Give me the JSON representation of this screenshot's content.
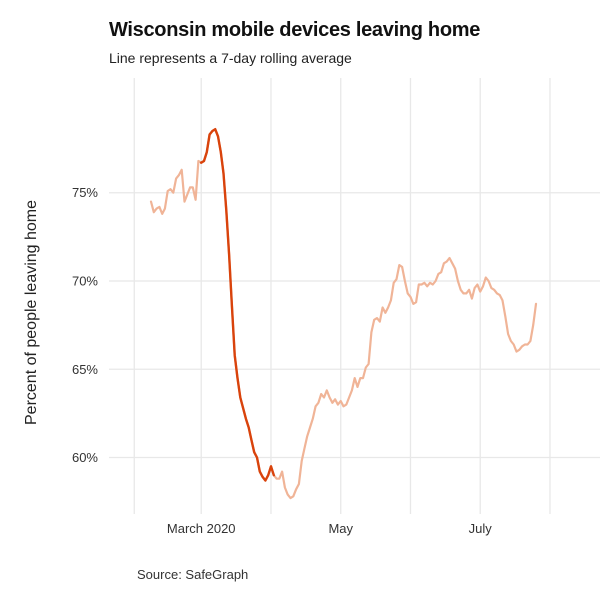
{
  "chart_data": {
    "type": "line",
    "title": "Wisconsin mobile devices leaving home",
    "subtitle": "Line represents a 7-day rolling average",
    "ylabel": "Percent of people leaving home",
    "source": "Source: SafeGraph",
    "ylim": [
      56.8,
      81.5
    ],
    "y_ticks": [
      60,
      65,
      70,
      75
    ],
    "y_tick_labels": [
      "60%",
      "65%",
      "70%",
      "75%"
    ],
    "x_ticks": [
      {
        "day": 18,
        "label": "March 2020"
      },
      {
        "day": 68,
        "label": "May"
      },
      {
        "day": 118,
        "label": "July"
      }
    ],
    "x_gridline_days": [
      -6,
      18,
      43,
      68,
      93,
      118,
      143
    ],
    "grid": true,
    "legend": "none",
    "colors": {
      "highlight": "#d9430c",
      "base": "#f0b497",
      "grid": "#e8e8e8"
    },
    "highlight_range": [
      18,
      44
    ],
    "series": [
      {
        "points": [
          [
            0,
            74.5
          ],
          [
            1,
            73.9
          ],
          [
            2,
            74.1
          ],
          [
            3,
            74.2
          ],
          [
            4,
            73.8
          ],
          [
            5,
            74.1
          ],
          [
            6,
            75.1
          ],
          [
            7,
            75.2
          ],
          [
            8,
            75.0
          ],
          [
            9,
            75.8
          ],
          [
            10,
            76.0
          ],
          [
            11,
            76.3
          ],
          [
            12,
            74.5
          ],
          [
            13,
            74.9
          ],
          [
            14,
            75.3
          ],
          [
            15,
            75.3
          ],
          [
            16,
            74.6
          ],
          [
            17,
            76.8
          ],
          [
            18,
            76.7
          ],
          [
            19,
            76.8
          ],
          [
            20,
            77.3
          ],
          [
            21,
            78.3
          ],
          [
            22,
            78.5
          ],
          [
            23,
            78.6
          ],
          [
            24,
            78.2
          ],
          [
            25,
            77.3
          ],
          [
            26,
            76.1
          ],
          [
            27,
            74.0
          ],
          [
            28,
            71.5
          ],
          [
            29,
            68.6
          ],
          [
            30,
            65.8
          ],
          [
            31,
            64.5
          ],
          [
            32,
            63.4
          ],
          [
            33,
            62.8
          ],
          [
            34,
            62.2
          ],
          [
            35,
            61.7
          ],
          [
            36,
            61.0
          ],
          [
            37,
            60.3
          ],
          [
            38,
            60.0
          ],
          [
            39,
            59.2
          ],
          [
            40,
            58.9
          ],
          [
            41,
            58.7
          ],
          [
            42,
            59.0
          ],
          [
            43,
            59.5
          ],
          [
            44,
            59.0
          ],
          [
            45,
            58.8
          ],
          [
            46,
            58.8
          ],
          [
            47,
            59.2
          ],
          [
            48,
            58.3
          ],
          [
            49,
            57.9
          ],
          [
            50,
            57.7
          ],
          [
            51,
            57.8
          ],
          [
            52,
            58.2
          ],
          [
            53,
            58.5
          ],
          [
            54,
            59.8
          ],
          [
            55,
            60.5
          ],
          [
            56,
            61.2
          ],
          [
            57,
            61.7
          ],
          [
            58,
            62.2
          ],
          [
            59,
            62.9
          ],
          [
            60,
            63.1
          ],
          [
            61,
            63.6
          ],
          [
            62,
            63.4
          ],
          [
            63,
            63.8
          ],
          [
            64,
            63.4
          ],
          [
            65,
            63.1
          ],
          [
            66,
            63.3
          ],
          [
            67,
            63.0
          ],
          [
            68,
            63.2
          ],
          [
            69,
            62.9
          ],
          [
            70,
            63.0
          ],
          [
            71,
            63.4
          ],
          [
            72,
            63.8
          ],
          [
            73,
            64.5
          ],
          [
            74,
            64.0
          ],
          [
            75,
            64.5
          ],
          [
            76,
            64.5
          ],
          [
            77,
            65.1
          ],
          [
            78,
            65.3
          ],
          [
            79,
            67.1
          ],
          [
            80,
            67.8
          ],
          [
            81,
            67.9
          ],
          [
            82,
            67.7
          ],
          [
            83,
            68.5
          ],
          [
            84,
            68.2
          ],
          [
            85,
            68.5
          ],
          [
            86,
            68.9
          ],
          [
            87,
            69.9
          ],
          [
            88,
            70.1
          ],
          [
            89,
            70.9
          ],
          [
            90,
            70.8
          ],
          [
            91,
            70.0
          ],
          [
            92,
            69.3
          ],
          [
            93,
            69.1
          ],
          [
            94,
            68.7
          ],
          [
            95,
            68.8
          ],
          [
            96,
            69.8
          ],
          [
            97,
            69.8
          ],
          [
            98,
            69.9
          ],
          [
            99,
            69.7
          ],
          [
            100,
            69.9
          ],
          [
            101,
            69.8
          ],
          [
            102,
            70.0
          ],
          [
            103,
            70.4
          ],
          [
            104,
            70.5
          ],
          [
            105,
            71.0
          ],
          [
            106,
            71.1
          ],
          [
            107,
            71.3
          ],
          [
            108,
            71.0
          ],
          [
            109,
            70.7
          ],
          [
            110,
            70.0
          ],
          [
            111,
            69.5
          ],
          [
            112,
            69.3
          ],
          [
            113,
            69.3
          ],
          [
            114,
            69.5
          ],
          [
            115,
            69.0
          ],
          [
            116,
            69.6
          ],
          [
            117,
            69.8
          ],
          [
            118,
            69.4
          ],
          [
            119,
            69.7
          ],
          [
            120,
            70.2
          ],
          [
            121,
            70.0
          ],
          [
            122,
            69.6
          ],
          [
            123,
            69.5
          ],
          [
            124,
            69.3
          ],
          [
            125,
            69.2
          ],
          [
            126,
            68.9
          ],
          [
            127,
            68.0
          ],
          [
            128,
            67.0
          ],
          [
            129,
            66.6
          ],
          [
            130,
            66.4
          ],
          [
            131,
            66.0
          ],
          [
            132,
            66.1
          ],
          [
            133,
            66.3
          ],
          [
            134,
            66.4
          ],
          [
            135,
            66.4
          ],
          [
            136,
            66.6
          ],
          [
            137,
            67.5
          ],
          [
            138,
            68.7
          ]
        ]
      }
    ]
  }
}
